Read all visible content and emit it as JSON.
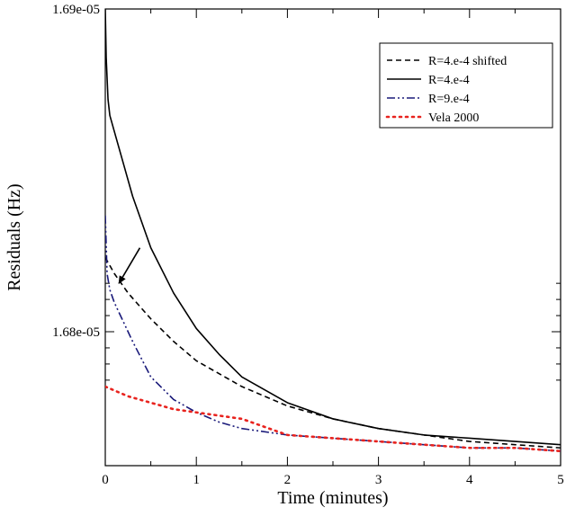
{
  "chart_data": {
    "type": "line",
    "xlabel": "Time (minutes)",
    "ylabel": "Residuals (Hz)",
    "xlim": [
      0,
      5
    ],
    "ylim": [
      1.67585e-05,
      1.69e-05
    ],
    "x_ticks": [
      0,
      1,
      2,
      3,
      4,
      5
    ],
    "x_tick_labels": [
      "0",
      "1",
      "2",
      "3",
      "4",
      "5"
    ],
    "y_ticks": [
      1.68e-05,
      1.69e-05
    ],
    "y_tick_labels": [
      "1.68e-05",
      "1.69e-05"
    ],
    "legend_position": "top-right",
    "grid": false,
    "series": [
      {
        "name": "R=4.e-4 shifted",
        "style": "dashed",
        "color": "#000000",
        "x": [
          0,
          0.1,
          0.25,
          0.5,
          0.75,
          1,
          1.5,
          2,
          2.5,
          3,
          3.5,
          4,
          4.5,
          5
        ],
        "y": [
          1.6823e-05,
          1.6818e-05,
          1.6812e-05,
          1.6804e-05,
          1.6797e-05,
          1.6791e-05,
          1.6783e-05,
          1.6777e-05,
          1.6773e-05,
          1.677e-05,
          1.6768e-05,
          1.6766e-05,
          1.6765e-05,
          1.6764e-05
        ]
      },
      {
        "name": "R=4.e-4",
        "style": "solid",
        "color": "#000000",
        "x": [
          0,
          0.01,
          0.03,
          0.05,
          0.1,
          0.2,
          0.3,
          0.5,
          0.75,
          1,
          1.25,
          1.5,
          2,
          2.5,
          3,
          3.5,
          4,
          4.5,
          5
        ],
        "y": [
          1.69e-05,
          1.6885e-05,
          1.6872e-05,
          1.6867e-05,
          1.6862e-05,
          1.6852e-05,
          1.6842e-05,
          1.6826e-05,
          1.6812e-05,
          1.6801e-05,
          1.6793e-05,
          1.6786e-05,
          1.6778e-05,
          1.6773e-05,
          1.677e-05,
          1.6768e-05,
          1.6767e-05,
          1.6766e-05,
          1.6765e-05
        ]
      },
      {
        "name": "R=9.e-4",
        "style": "dash-dot-dot",
        "color": "#1a1a7a",
        "x": [
          0,
          0.02,
          0.05,
          0.1,
          0.2,
          0.3,
          0.5,
          0.75,
          1,
          1.25,
          1.5,
          2,
          2.5,
          3,
          3.5,
          4,
          4.5,
          5
        ],
        "y": [
          1.6836e-05,
          1.6818e-05,
          1.6813e-05,
          1.6809e-05,
          1.6803e-05,
          1.6797e-05,
          1.6786e-05,
          1.6779e-05,
          1.6775e-05,
          1.6772e-05,
          1.677e-05,
          1.6768e-05,
          1.6767e-05,
          1.6766e-05,
          1.6765e-05,
          1.6764e-05,
          1.6764e-05,
          1.6763e-05
        ]
      },
      {
        "name": "Vela 2000",
        "style": "dotted",
        "color": "#e8231e",
        "x": [
          0,
          0.25,
          0.5,
          0.75,
          1,
          1.25,
          1.5,
          2,
          2.5,
          3,
          3.5,
          4,
          4.5,
          5
        ],
        "y": [
          1.6783e-05,
          1.678e-05,
          1.6778e-05,
          1.6776e-05,
          1.6775e-05,
          1.6774e-05,
          1.6773e-05,
          1.6768e-05,
          1.6767e-05,
          1.6766e-05,
          1.6765e-05,
          1.6764e-05,
          1.6764e-05,
          1.6763e-05
        ]
      }
    ],
    "annotations": [
      {
        "type": "arrow",
        "from": [
          0.38,
          1.6826e-05
        ],
        "to": [
          0.15,
          1.6815e-05
        ]
      }
    ]
  }
}
